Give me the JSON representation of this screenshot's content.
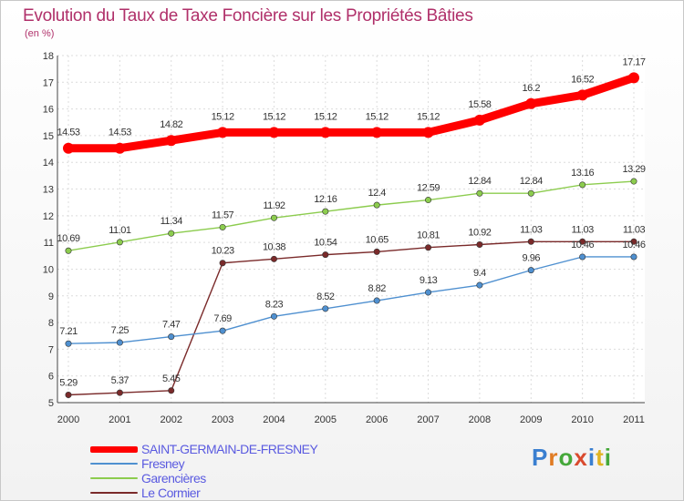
{
  "chart_data": {
    "type": "line",
    "title": "Evolution du Taux de Taxe Foncière sur les Propriétés Bâties",
    "subtitle": "(en %)",
    "x": [
      "2000",
      "2001",
      "2002",
      "2003",
      "2004",
      "2005",
      "2006",
      "2007",
      "2008",
      "2009",
      "2010",
      "2011"
    ],
    "ylim": [
      5,
      18
    ],
    "yticks": [
      "5",
      "6",
      "7",
      "8",
      "9",
      "10",
      "11",
      "12",
      "13",
      "14",
      "15",
      "16",
      "17",
      "18"
    ],
    "grid": true,
    "series": [
      {
        "name": "SAINT-GERMAIN-DE-FRESNEY",
        "color": "#ff0000",
        "values": [
          14.53,
          14.53,
          14.82,
          15.12,
          15.12,
          15.12,
          15.12,
          15.12,
          15.58,
          16.2,
          16.52,
          17.17
        ],
        "labels": [
          "14.53",
          "14.53",
          "14.82",
          "15.12",
          "15.12",
          "15.12",
          "15.12",
          "15.12",
          "15.58",
          "16.2",
          "16.52",
          "17.17"
        ]
      },
      {
        "name": "Fresney",
        "color": "#4f90d0",
        "values": [
          7.21,
          7.25,
          7.47,
          7.69,
          8.23,
          8.52,
          8.82,
          9.13,
          9.4,
          9.96,
          10.46,
          10.46
        ],
        "labels": [
          "7.21",
          "7.25",
          "7.47",
          "7.69",
          "8.23",
          "8.52",
          "8.82",
          "9.13",
          "9.4",
          "9.96",
          "10.46",
          "10.46"
        ]
      },
      {
        "name": "Garencières",
        "color": "#8ccc4e",
        "values": [
          10.69,
          11.01,
          11.34,
          11.57,
          11.92,
          12.16,
          12.4,
          12.59,
          12.84,
          12.84,
          13.16,
          13.29
        ],
        "labels": [
          "10.69",
          "11.01",
          "11.34",
          "11.57",
          "11.92",
          "12.16",
          "12.4",
          "12.59",
          "12.84",
          "12.84",
          "13.16",
          "13.29"
        ]
      },
      {
        "name": "Le Cormier",
        "color": "#7a2a2a",
        "values": [
          5.29,
          5.37,
          5.45,
          10.23,
          10.38,
          10.54,
          10.65,
          10.81,
          10.92,
          11.03,
          11.03,
          11.03
        ],
        "labels": [
          "5.29",
          "5.37",
          "5.45",
          "10.23",
          "10.38",
          "10.54",
          "10.65",
          "10.81",
          "10.92",
          "11.03",
          "11.03",
          "11.03"
        ]
      }
    ]
  },
  "logo": {
    "letters": [
      "P",
      "r",
      "o",
      "x",
      "i",
      "t",
      "i"
    ]
  }
}
